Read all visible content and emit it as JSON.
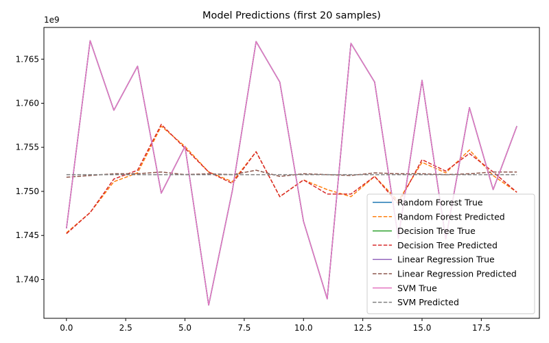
{
  "chart_data": {
    "type": "line",
    "title": "Model Predictions (first 20 samples)",
    "xlabel": "",
    "ylabel": "",
    "y_offset_label": "1e9",
    "x": [
      0,
      1,
      2,
      3,
      4,
      5,
      6,
      7,
      8,
      9,
      10,
      11,
      12,
      13,
      14,
      15,
      16,
      17,
      18,
      19
    ],
    "xlim": [
      -0.95,
      19.95
    ],
    "ylim": [
      1.7356,
      1.7686
    ],
    "xticks": [
      0,
      2.5,
      5,
      7.5,
      10,
      12.5,
      15,
      17.5
    ],
    "xtick_labels": [
      "0.0",
      "2.5",
      "5.0",
      "7.5",
      "10.0",
      "12.5",
      "15.0",
      "17.5"
    ],
    "yticks": [
      1.74,
      1.745,
      1.75,
      1.755,
      1.76,
      1.765
    ],
    "ytick_labels": [
      "1.740",
      "1.745",
      "1.750",
      "1.755",
      "1.760",
      "1.765"
    ],
    "legend_position": "lower-right",
    "grid": false,
    "series": [
      {
        "name": "Random Forest True",
        "color": "#1f77b4",
        "dash": "solid",
        "values": [
          1.7458,
          1.7671,
          1.7592,
          1.7642,
          1.7498,
          1.7551,
          1.7371,
          1.7501,
          1.767,
          1.7624,
          1.7466,
          1.7378,
          1.7668,
          1.7624,
          1.7447,
          1.7626,
          1.7446,
          1.7595,
          1.7502,
          1.7574
        ]
      },
      {
        "name": "Random Forest Predicted",
        "color": "#ff7f0e",
        "dash": "dashed",
        "values": [
          1.7453,
          1.7476,
          1.7511,
          1.7521,
          1.7574,
          1.7551,
          1.7522,
          1.7511,
          1.7545,
          1.7494,
          1.7513,
          1.7502,
          1.7494,
          1.7517,
          1.7489,
          1.7533,
          1.7521,
          1.7547,
          1.7518,
          1.7499
        ]
      },
      {
        "name": "Decision Tree True",
        "color": "#2ca02c",
        "dash": "solid",
        "values": [
          1.7458,
          1.7671,
          1.7592,
          1.7642,
          1.7498,
          1.7551,
          1.7371,
          1.7501,
          1.767,
          1.7624,
          1.7466,
          1.7378,
          1.7668,
          1.7624,
          1.7447,
          1.7626,
          1.7446,
          1.7595,
          1.7502,
          1.7574
        ]
      },
      {
        "name": "Decision Tree Predicted",
        "color": "#d62728",
        "dash": "dashed",
        "values": [
          1.7452,
          1.7476,
          1.7514,
          1.7524,
          1.7576,
          1.7549,
          1.7522,
          1.7509,
          1.7545,
          1.7494,
          1.7513,
          1.7497,
          1.7497,
          1.7517,
          1.7486,
          1.7536,
          1.7523,
          1.7543,
          1.7522,
          1.7499
        ]
      },
      {
        "name": "Linear Regression True",
        "color": "#9467bd",
        "dash": "solid",
        "values": [
          1.7458,
          1.7671,
          1.7592,
          1.7642,
          1.7498,
          1.7551,
          1.7371,
          1.7501,
          1.767,
          1.7624,
          1.7466,
          1.7378,
          1.7668,
          1.7624,
          1.7447,
          1.7626,
          1.7446,
          1.7595,
          1.7502,
          1.7574
        ]
      },
      {
        "name": "Linear Regression Predicted",
        "color": "#8c564b",
        "dash": "dashed",
        "values": [
          1.7516,
          1.7518,
          1.752,
          1.752,
          1.7522,
          1.7519,
          1.752,
          1.7519,
          1.7524,
          1.7517,
          1.752,
          1.7519,
          1.7518,
          1.7521,
          1.752,
          1.752,
          1.7519,
          1.752,
          1.7522,
          1.7522
        ]
      },
      {
        "name": "SVM True",
        "color": "#e377c2",
        "dash": "solid",
        "values": [
          1.7458,
          1.7671,
          1.7592,
          1.7642,
          1.7498,
          1.7551,
          1.7371,
          1.7501,
          1.767,
          1.7624,
          1.7466,
          1.7378,
          1.7668,
          1.7624,
          1.7447,
          1.7626,
          1.7446,
          1.7595,
          1.7502,
          1.7574
        ]
      },
      {
        "name": "SVM Predicted",
        "color": "#7f7f7f",
        "dash": "dashed",
        "values": [
          1.7519,
          1.7519,
          1.7519,
          1.7519,
          1.7519,
          1.7519,
          1.7519,
          1.7519,
          1.7519,
          1.7519,
          1.7519,
          1.7519,
          1.7519,
          1.7519,
          1.7519,
          1.7519,
          1.7519,
          1.7519,
          1.7519,
          1.7519
        ]
      }
    ]
  }
}
